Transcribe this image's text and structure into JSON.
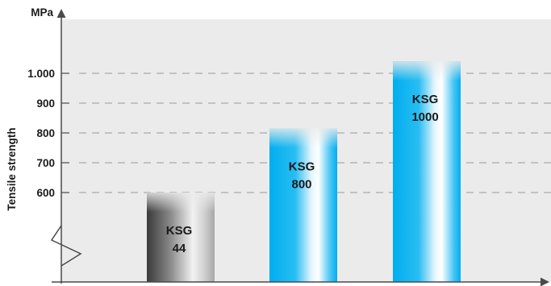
{
  "chart_data": {
    "type": "bar",
    "unit": "MPa",
    "ylabel": "Tensile strength",
    "yticks": [
      600,
      700,
      800,
      900,
      1000
    ],
    "ytick_labels": [
      "600",
      "700",
      "800",
      "900",
      "1.000"
    ],
    "ylim": [
      600,
      1000
    ],
    "axis_break": true,
    "grid": "dashed horizontal",
    "categories": [
      "KSG 44",
      "KSG 800",
      "KSG 1000"
    ],
    "bar_label_lines": [
      [
        "KSG",
        "44"
      ],
      [
        "KSG",
        "800"
      ],
      [
        "KSG",
        "1000"
      ]
    ],
    "values": [
      600,
      815,
      1040
    ],
    "bar_styles": [
      "grey",
      "blue",
      "blue"
    ]
  },
  "colors": {
    "plot_background": "#ebebeb",
    "grid": "#9a9a9a",
    "axis": "#4a4a4a",
    "blue": "#00aeef",
    "grey": "#4d4d4d"
  }
}
